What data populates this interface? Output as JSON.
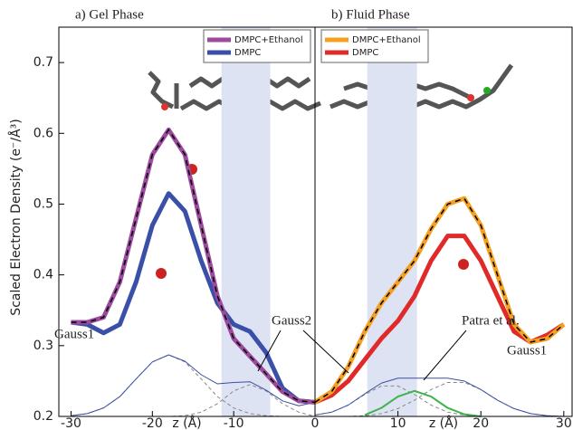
{
  "ylabel": "Scaled Electron Density (e⁻/Å³)",
  "chart_data": [
    {
      "type": "line",
      "title": "a) Gel Phase",
      "xlabel": "z (Å)",
      "x": [
        -30,
        -28,
        -26,
        -24,
        -22,
        -20,
        -18,
        -16,
        -14,
        -12,
        -10,
        -8,
        -6,
        -4,
        -2,
        0
      ],
      "xlim": [
        -31.5,
        0
      ],
      "xticks": [
        -30,
        -20,
        -10,
        0
      ],
      "ylim": [
        0.2,
        0.75
      ],
      "yticks": [
        0.2,
        0.3,
        0.4,
        0.5,
        0.6,
        0.7
      ],
      "shaded_region": [
        -11.5,
        -5.5
      ],
      "series": [
        {
          "color": "#888888",
          "style": "dashed",
          "values": [
            0.201,
            0.204,
            0.212,
            0.228,
            0.253,
            0.277,
            0.287,
            0.277,
            0.253,
            0.228,
            0.212,
            0.204,
            0.201,
            0.2,
            0.2,
            0.2
          ]
        },
        {
          "color": "#888888",
          "style": "dashed",
          "values": [
            0.2,
            0.2,
            0.2,
            0.2,
            0.2,
            0.2,
            0.2,
            0.201,
            0.206,
            0.218,
            0.236,
            0.245,
            0.236,
            0.218,
            0.206,
            0.2
          ]
        },
        {
          "color": "#3a4fa3",
          "style": "thin",
          "values": [
            0.201,
            0.204,
            0.212,
            0.228,
            0.253,
            0.277,
            0.287,
            0.278,
            0.259,
            0.246,
            0.248,
            0.249,
            0.237,
            0.222,
            0.215,
            0.22
          ]
        },
        {
          "name": "DMPC",
          "color": "#3a4fa8",
          "style": "thick",
          "values": [
            0.333,
            0.33,
            0.318,
            0.33,
            0.39,
            0.47,
            0.515,
            0.49,
            0.42,
            0.36,
            0.33,
            0.32,
            0.29,
            0.24,
            0.222,
            0.22
          ]
        },
        {
          "name": "DMPC+Ethanol",
          "color": "#9b4a9e",
          "style": "thick-overlay",
          "values": [
            0.333,
            0.333,
            0.34,
            0.39,
            0.48,
            0.57,
            0.605,
            0.57,
            0.47,
            0.37,
            0.31,
            0.285,
            0.26,
            0.235,
            0.222,
            0.22
          ]
        }
      ],
      "annotations": [
        "Gauss1",
        "Gauss2"
      ]
    },
    {
      "type": "line",
      "title": "b) Fluid Phase",
      "xlabel": "z (Å)",
      "x": [
        0,
        2,
        4,
        6,
        8,
        10,
        12,
        14,
        16,
        18,
        20,
        22,
        24,
        26,
        28,
        30
      ],
      "xlim": [
        0,
        31
      ],
      "xticks": [
        10,
        20,
        30
      ],
      "ylim": [
        0.2,
        0.75
      ],
      "shaded_region": [
        6.3,
        12.3
      ],
      "series": [
        {
          "color": "#888888",
          "style": "dashed",
          "values": [
            0.202,
            0.206,
            0.216,
            0.231,
            0.243,
            0.243,
            0.231,
            0.216,
            0.206,
            0.202,
            0.2,
            0.2,
            0.2,
            0.2,
            0.2,
            0.2
          ]
        },
        {
          "color": "#888888",
          "style": "dashed",
          "values": [
            0.2,
            0.2,
            0.2,
            0.201,
            0.204,
            0.211,
            0.223,
            0.238,
            0.248,
            0.248,
            0.238,
            0.223,
            0.211,
            0.204,
            0.201,
            0.2
          ]
        },
        {
          "color": "#3a4fa3",
          "style": "thin",
          "values": [
            0.202,
            0.206,
            0.216,
            0.232,
            0.247,
            0.254,
            0.254,
            0.254,
            0.254,
            0.25,
            0.238,
            0.223,
            0.211,
            0.204,
            0.201,
            0.2
          ]
        },
        {
          "color": "#3cb44a",
          "style": "medium",
          "values": [
            null,
            null,
            null,
            0.202,
            0.212,
            0.228,
            0.236,
            0.228,
            0.212,
            0.203,
            0.2,
            null,
            null,
            null,
            null,
            null
          ]
        },
        {
          "name": "DMPC",
          "color": "#e02a2a",
          "style": "thick",
          "values": [
            0.22,
            0.23,
            0.25,
            0.28,
            0.31,
            0.335,
            0.37,
            0.42,
            0.455,
            0.455,
            0.42,
            0.37,
            0.32,
            0.305,
            0.315,
            0.33
          ]
        },
        {
          "name": "DMPC+Ethanol",
          "color": "#f5a020",
          "style": "thick-overlay",
          "values": [
            0.22,
            0.235,
            0.27,
            0.32,
            0.36,
            0.39,
            0.42,
            0.465,
            0.5,
            0.508,
            0.47,
            0.4,
            0.33,
            0.305,
            0.31,
            0.33
          ]
        }
      ],
      "annotations": [
        "Patra et al.",
        "Gauss1"
      ]
    }
  ]
}
